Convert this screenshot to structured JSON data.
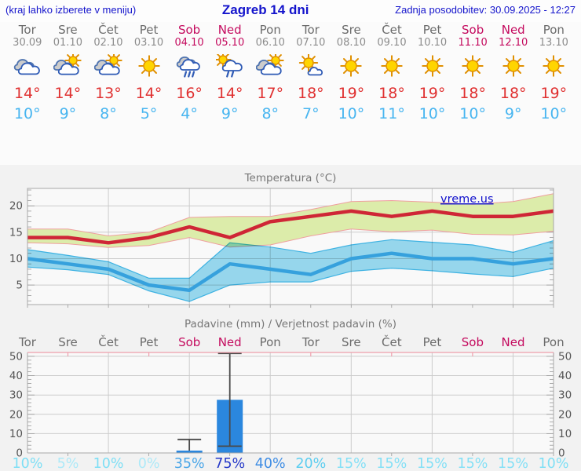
{
  "header": {
    "left_note": "(kraj lahko izberete v meniju)",
    "title": "Zagreb 14 dni",
    "updated": "Zadnja posodobitev: 30.09.2025 - 12:27"
  },
  "colors": {
    "header_text": "#1414cc",
    "weekday_text": "#6b6b6b",
    "weekend_text": "#c40a5e",
    "high_temp": "#e03131",
    "low_temp": "#47b5f0",
    "axis_text": "#555555",
    "chart_title_text": "#777777",
    "grid_line": "#cccccc",
    "chart_border": "#a8a8a8",
    "precip_top_border": "#ef9fac"
  },
  "days": [
    {
      "name": "Tor",
      "date": "30.09",
      "weekend": false,
      "icon": "cloudy",
      "tmax": "14°",
      "tmin": "10°"
    },
    {
      "name": "Sre",
      "date": "01.10",
      "weekend": false,
      "icon": "partly-cloudy",
      "tmax": "14°",
      "tmin": "9°"
    },
    {
      "name": "Čet",
      "date": "02.10",
      "weekend": false,
      "icon": "partly-cloudy",
      "tmax": "13°",
      "tmin": "8°"
    },
    {
      "name": "Pet",
      "date": "03.10",
      "weekend": false,
      "icon": "sunny",
      "tmax": "14°",
      "tmin": "5°"
    },
    {
      "name": "Sob",
      "date": "04.10",
      "weekend": true,
      "icon": "rain",
      "tmax": "16°",
      "tmin": "4°"
    },
    {
      "name": "Ned",
      "date": "05.10",
      "weekend": true,
      "icon": "sun-rain",
      "tmax": "14°",
      "tmin": "9°"
    },
    {
      "name": "Pon",
      "date": "06.10",
      "weekend": false,
      "icon": "partly-cloudy",
      "tmax": "17°",
      "tmin": "8°"
    },
    {
      "name": "Tor",
      "date": "07.10",
      "weekend": false,
      "icon": "mostly-sunny",
      "tmax": "18°",
      "tmin": "7°"
    },
    {
      "name": "Sre",
      "date": "08.10",
      "weekend": false,
      "icon": "sunny",
      "tmax": "19°",
      "tmin": "10°"
    },
    {
      "name": "Čet",
      "date": "09.10",
      "weekend": false,
      "icon": "sunny",
      "tmax": "18°",
      "tmin": "11°"
    },
    {
      "name": "Pet",
      "date": "10.10",
      "weekend": false,
      "icon": "sunny",
      "tmax": "19°",
      "tmin": "10°"
    },
    {
      "name": "Sob",
      "date": "11.10",
      "weekend": true,
      "icon": "sunny",
      "tmax": "18°",
      "tmin": "10°"
    },
    {
      "name": "Ned",
      "date": "12.10",
      "weekend": true,
      "icon": "sunny",
      "tmax": "18°",
      "tmin": "9°"
    },
    {
      "name": "Pon",
      "date": "13.10",
      "weekend": false,
      "icon": "sunny",
      "tmax": "19°",
      "tmin": "10°"
    }
  ],
  "chart_data": [
    {
      "type": "area",
      "title": "Temperatura (°C)",
      "watermark": "vreme.us",
      "watermark_color": "#1111cc",
      "x_categories": [
        "Tor",
        "Sre",
        "Čet",
        "Pet",
        "Sob",
        "Ned",
        "Pon",
        "Tor",
        "Sre",
        "Čet",
        "Pet",
        "Sob",
        "Ned",
        "Pon"
      ],
      "ylim": [
        1.3,
        23.3
      ],
      "yticks": [
        5,
        10,
        15,
        20
      ],
      "grid": "on",
      "series": [
        {
          "name": "max_temp",
          "color": "#cf2636",
          "values": [
            14,
            14,
            13,
            14,
            16,
            14,
            17,
            18,
            19,
            18,
            19,
            18,
            18,
            19
          ]
        },
        {
          "name": "max_band_upper",
          "values": [
            15.6,
            15.6,
            14.3,
            15.0,
            17.8,
            18.0,
            18.0,
            19.3,
            20.8,
            21.0,
            20.7,
            20.3,
            20.8,
            22.3
          ]
        },
        {
          "name": "max_band_lower",
          "values": [
            13.0,
            12.8,
            12.1,
            12.5,
            14.0,
            12.2,
            12.6,
            14.3,
            15.6,
            15.1,
            15.4,
            14.6,
            14.5,
            15.2
          ]
        },
        {
          "name": "min_temp",
          "color": "#36a1dd",
          "values": [
            10,
            9,
            8,
            5,
            4,
            9,
            8,
            7,
            10,
            11,
            10,
            10,
            9,
            10
          ]
        },
        {
          "name": "min_band_upper",
          "values": [
            11.7,
            10.6,
            9.4,
            6.3,
            6.3,
            13.0,
            12.2,
            11.0,
            12.6,
            13.6,
            13.1,
            12.6,
            11.2,
            13.4
          ]
        },
        {
          "name": "min_band_lower",
          "values": [
            8.4,
            7.9,
            7.0,
            3.9,
            1.9,
            5.0,
            5.6,
            5.6,
            7.6,
            8.2,
            7.7,
            7.1,
            6.6,
            8.2
          ]
        }
      ],
      "band_colors": {
        "max_fill": "#dcecaa",
        "max_edge": "#ef9f9f",
        "min_fill": "#9adcf2",
        "min_edge": "#3fb7e8"
      }
    },
    {
      "type": "bar",
      "title": "Padavine (mm) / Verjetnost padavin (%)",
      "categories": [
        "Tor",
        "Sre",
        "Čet",
        "Pet",
        "Sob",
        "Ned",
        "Pon",
        "Tor",
        "Sre",
        "Čet",
        "Pet",
        "Sob",
        "Ned",
        "Pon"
      ],
      "values": [
        0,
        0,
        0,
        0,
        1.2,
        27.5,
        0,
        0,
        0,
        0,
        0,
        0,
        0,
        0
      ],
      "whiskers": [
        null,
        null,
        null,
        null,
        {
          "lo": 1.2,
          "hi": 7,
          "cap_lo": false
        },
        {
          "lo": 3.5,
          "hi": 51.5,
          "cap_lo": true
        },
        null,
        null,
        null,
        null,
        null,
        null,
        null,
        null
      ],
      "bar_color": "#2b87de",
      "whisker_color": "#4a4a4a",
      "ylim": [
        0,
        52
      ],
      "yticks": [
        0,
        10,
        20,
        30,
        40,
        50
      ],
      "grid": "on",
      "probabilities": [
        "10%",
        "5%",
        "10%",
        "0%",
        "35%",
        "75%",
        "40%",
        "20%",
        "15%",
        "15%",
        "15%",
        "15%",
        "15%",
        "10%"
      ],
      "probability_colors": [
        "#7edff5",
        "#ade9f8",
        "#7edff5",
        "#ade9f8",
        "#4aa6e8",
        "#2438c8",
        "#3f8de4",
        "#5bcdf0",
        "#84e0f6",
        "#84e0f6",
        "#84e0f6",
        "#84e0f6",
        "#84e0f6",
        "#7edff5"
      ]
    }
  ]
}
